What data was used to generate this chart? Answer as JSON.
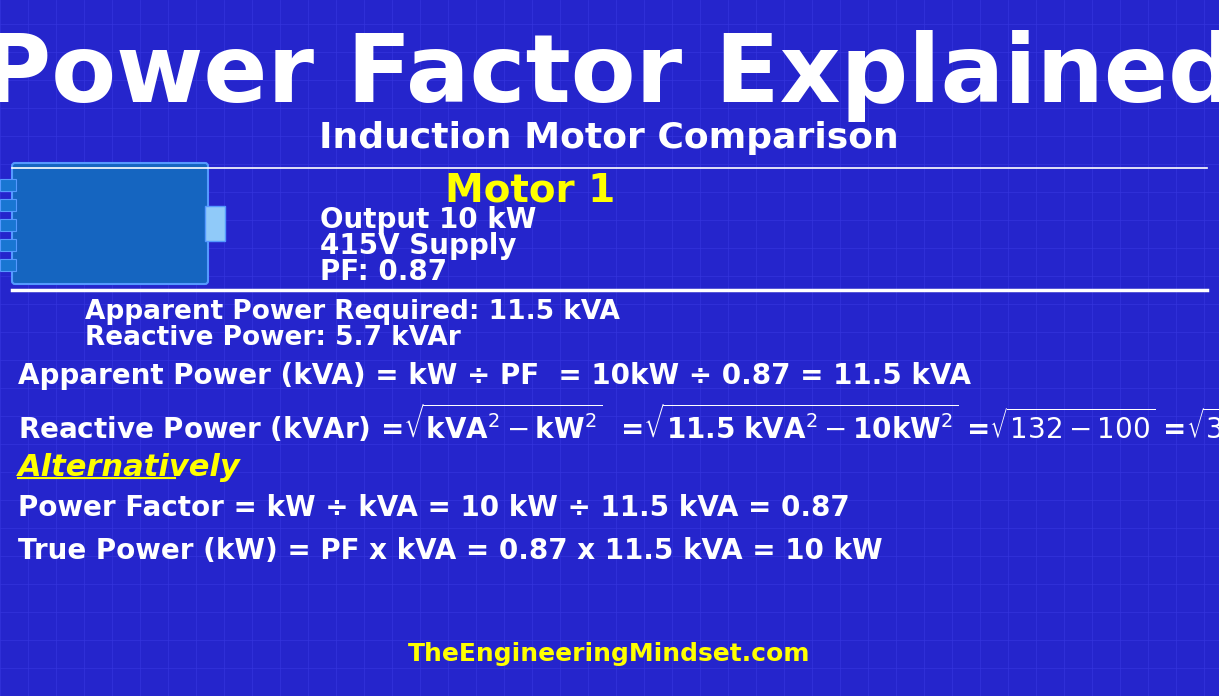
{
  "bg_color": "#2525cc",
  "grid_color": "#3535dd",
  "title": "Power Factor Explained",
  "subtitle": "Induction Motor Comparison",
  "motor_label": "Motor 1",
  "motor_specs": [
    "Output 10 kW",
    "415V Supply",
    "PF: 0.87"
  ],
  "summary_lines": [
    "Apparent Power Required: 11.5 kVA",
    "Reactive Power: 5.7 kVAr"
  ],
  "eq1": "Apparent Power (kVA) = kW ÷ PF  = 10kW ÷ 0.87 = 11.5 kVA",
  "alternatively": "Alternatively",
  "pf_eq": "Power Factor = kW ÷ kVA = 10 kW ÷ 11.5 kVA = 0.87",
  "tp_eq": "True Power (kW) = PF x kVA = 0.87 x 11.5 kVA = 10 kW",
  "footer": "TheEngineeringMindset.com",
  "white": "#ffffff",
  "yellow": "#ffff00",
  "title_fontsize": 68,
  "subtitle_fontsize": 26,
  "motor_label_fontsize": 28,
  "spec_fontsize": 20,
  "eq_fontsize": 20,
  "summary_fontsize": 19,
  "alt_fontsize": 22,
  "footer_fontsize": 18
}
